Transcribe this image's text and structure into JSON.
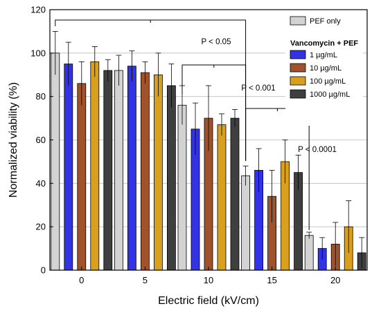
{
  "chart_data": {
    "type": "bar",
    "xlabel": "Electric field (kV/cm)",
    "ylabel": "Normalized viability (%)",
    "ylim": [
      0,
      120
    ],
    "yticks": [
      0,
      20,
      40,
      60,
      80,
      100,
      120
    ],
    "grid": "horizontal",
    "legend_position": "top-right",
    "categories": [
      "0",
      "5",
      "10",
      "15",
      "20"
    ],
    "legend_group_title": "Vancomycin + PEF",
    "series": [
      {
        "name": "PEF only",
        "color": "#d3d3d3",
        "values": [
          100,
          92,
          76,
          43.5,
          16
        ],
        "errors": [
          10,
          7,
          9,
          4.5,
          1.5
        ]
      },
      {
        "name": "1 µg/mL",
        "color": "#3333e6",
        "values": [
          95,
          94,
          65,
          46,
          10
        ],
        "errors": [
          10,
          7,
          12,
          10,
          5
        ]
      },
      {
        "name": "10 µg/mL",
        "color": "#a0522d",
        "values": [
          86,
          91,
          70,
          34,
          12
        ],
        "errors": [
          10,
          5,
          15,
          12,
          10
        ]
      },
      {
        "name": "100 µg/mL",
        "color": "#d9a020",
        "values": [
          96,
          90,
          67,
          50,
          20
        ],
        "errors": [
          7,
          10,
          5,
          10,
          12
        ]
      },
      {
        "name": "1000 µg/mL",
        "color": "#3f3f3f",
        "values": [
          92,
          85,
          70,
          45,
          8
        ],
        "errors": [
          5,
          10,
          4,
          8,
          7
        ]
      }
    ],
    "annotations": [
      {
        "text": "P < 0.05",
        "from_category": "0",
        "to_category": "15"
      },
      {
        "text": "P < 0.001",
        "from_category": "10",
        "to_category": "15"
      },
      {
        "text": "P < 0.0001",
        "from_category": "15",
        "to_category": "20"
      }
    ]
  }
}
